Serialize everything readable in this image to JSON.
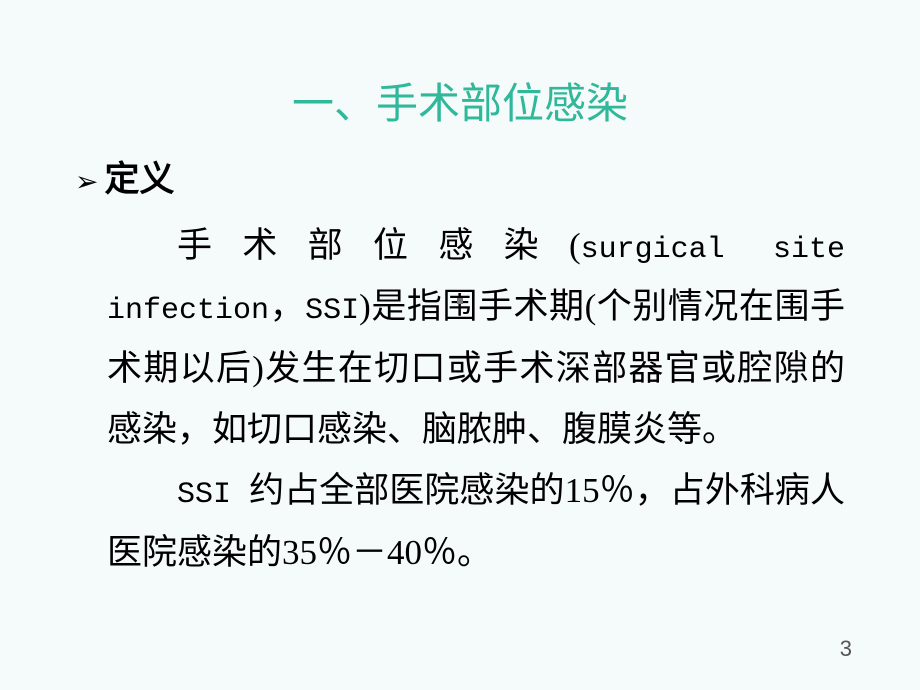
{
  "slide": {
    "title": "一、手术部位感染",
    "bullet_label": "定义",
    "para1_prefix": "手术部位感染(",
    "para1_ascii": "surgical site infection",
    "para1_mid": "，",
    "para1_ascii2": "SSI",
    "para1_suffix": ")是指围手术期(个别情况在围手术期以后)发生在切口或手术深部器官或腔隙的感染，如切口感染、脑脓肿、腹膜炎等。",
    "para2_ascii": "SSI ",
    "para2_text": "约占全部医院感染的15％，占外科病人医院感染的35％－40％。",
    "page_number": "3"
  },
  "colors": {
    "background": "#f5fafa",
    "title_color": "#2fb89a",
    "text_color": "#000000",
    "page_num_color": "#555555"
  },
  "typography": {
    "title_fontsize": 42,
    "body_fontsize": 35,
    "line_height": 1.75
  }
}
